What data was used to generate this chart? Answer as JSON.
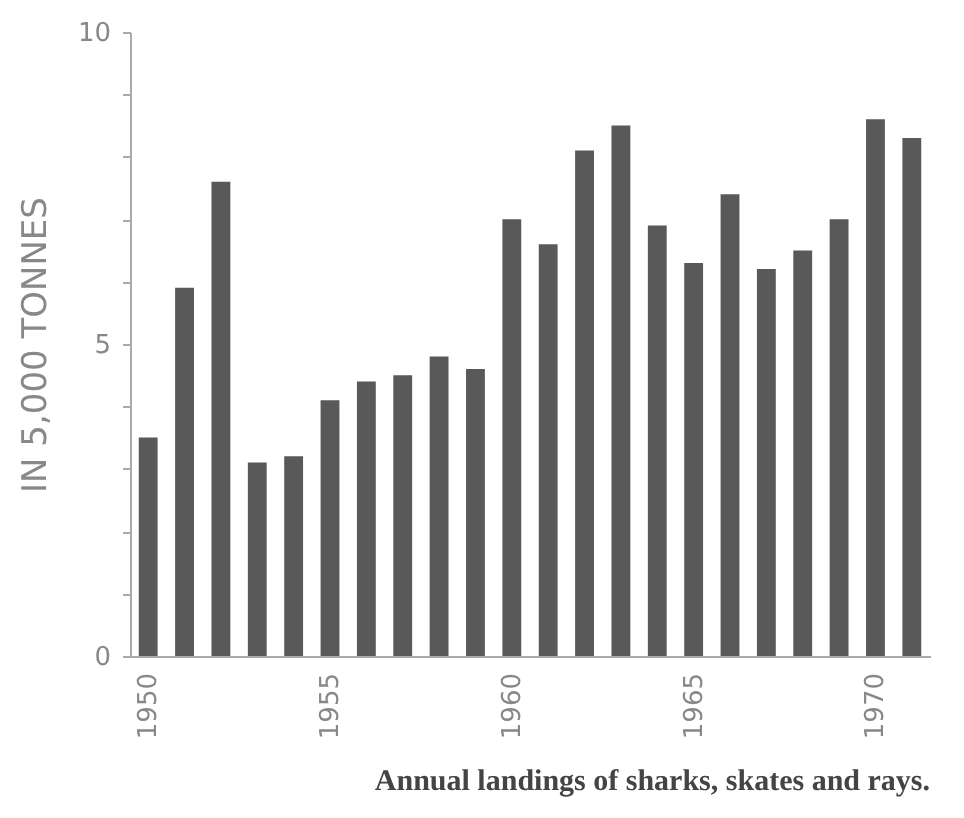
{
  "chart_data": {
    "type": "bar",
    "title": "Annual landings of sharks, skates and rays.",
    "ylabel": "IN 5,000 TONNES",
    "categories": [
      "1950",
      null,
      null,
      null,
      null,
      "1955",
      null,
      null,
      null,
      null,
      "1960",
      null,
      null,
      null,
      null,
      "1965",
      null,
      null,
      null,
      null,
      "1970",
      null
    ],
    "values": [
      3.5,
      5.9,
      7.6,
      3.1,
      3.2,
      4.1,
      4.4,
      4.5,
      4.8,
      4.6,
      7.0,
      6.6,
      8.1,
      8.5,
      6.9,
      6.3,
      7.4,
      6.2,
      6.5,
      7.0,
      8.6,
      8.3
    ],
    "color": "#595959",
    "ylim": [
      0,
      10
    ],
    "yticks": [
      0,
      {
        "value": 1,
        "label": null
      },
      {
        "value": 2,
        "label": null
      },
      {
        "value": 3,
        "label": null
      },
      {
        "value": 4,
        "label": null
      },
      5,
      {
        "value": 6,
        "label": null
      },
      {
        "value": 7,
        "label": null
      },
      {
        "value": 8,
        "label": null
      },
      {
        "value": 9,
        "label": null
      },
      10
    ],
    "grid": false
  }
}
